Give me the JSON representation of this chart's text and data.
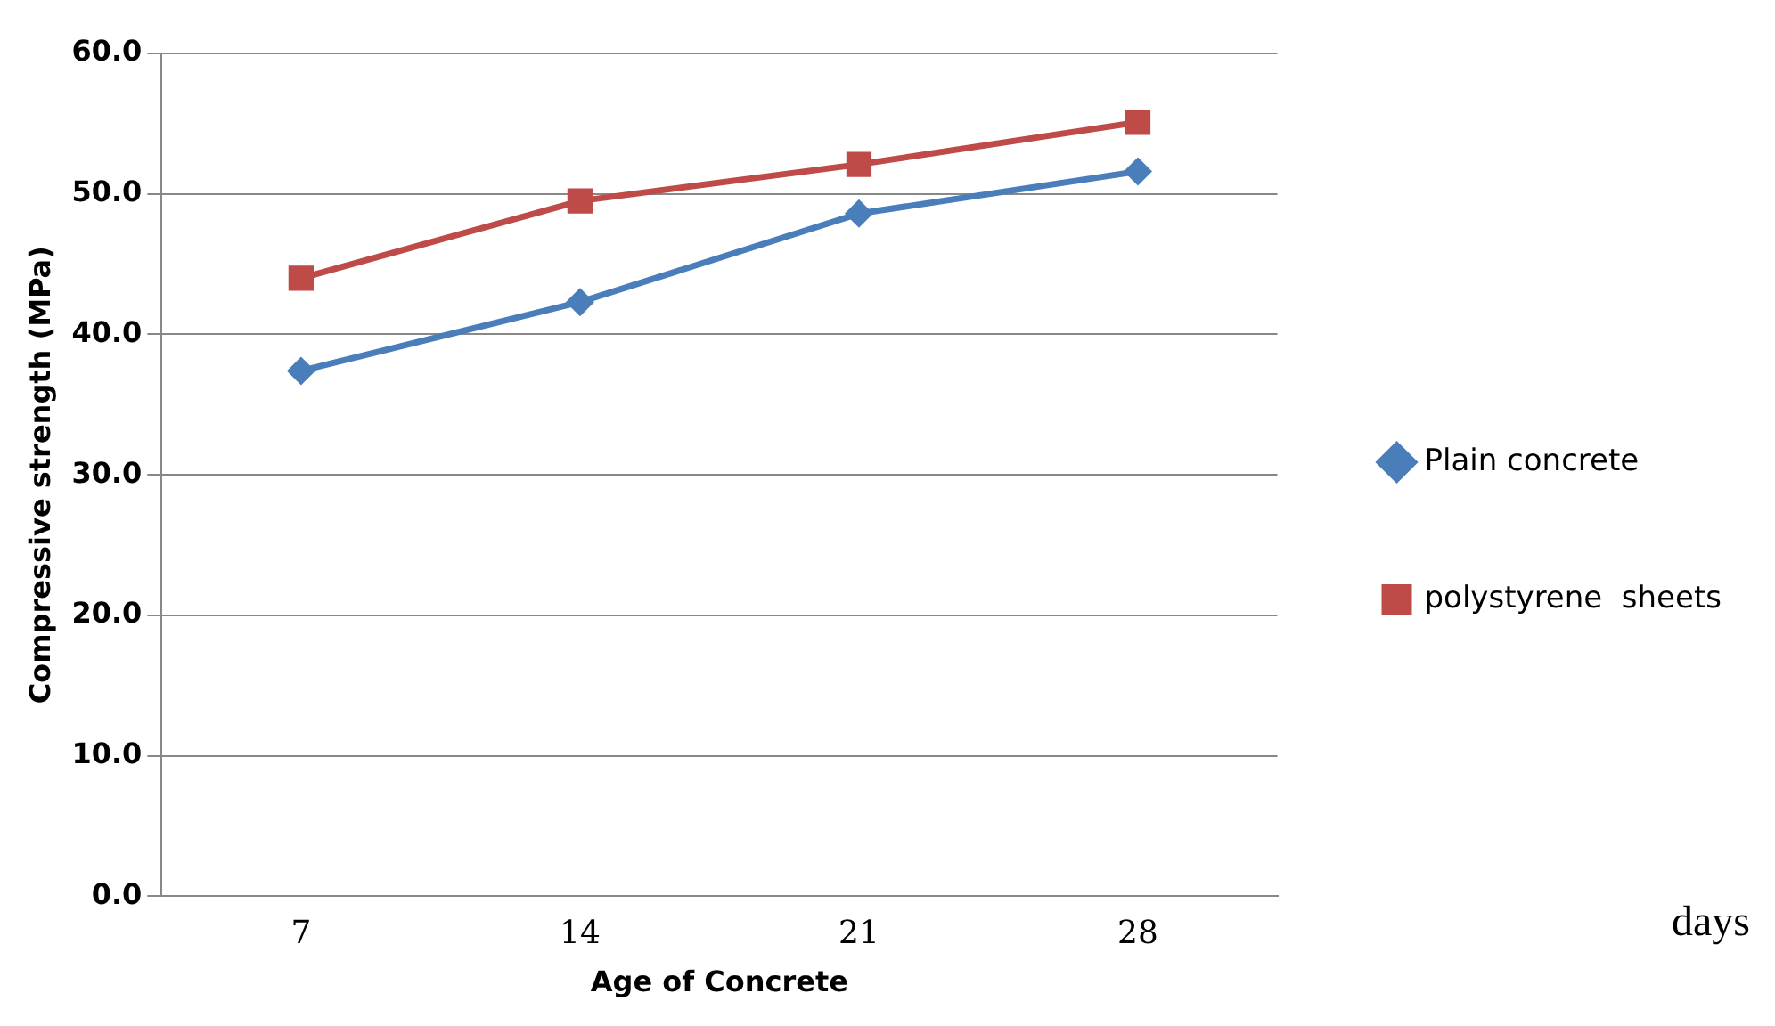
{
  "chart_data": {
    "type": "line",
    "xlabel": "Age of Concrete",
    "ylabel": "Compressive strength (MPa)",
    "categories": [
      "7",
      "14",
      "21",
      "28"
    ],
    "series": [
      {
        "name": "Plain concrete",
        "color": "#4a7ebb",
        "marker": "diamond",
        "values": [
          37.4,
          42.3,
          48.6,
          51.6
        ]
      },
      {
        "name": "polystyrene  sheets",
        "color": "#be4b48",
        "marker": "square",
        "values": [
          44.0,
          49.5,
          52.1,
          55.1
        ]
      }
    ],
    "ylim": [
      0,
      60
    ],
    "yticks": [
      {
        "value": 0,
        "label": "0.0"
      },
      {
        "value": 10,
        "label": "10.0"
      },
      {
        "value": 20,
        "label": "20.0"
      },
      {
        "value": 30,
        "label": "30.0"
      },
      {
        "value": 40,
        "label": "40.0"
      },
      {
        "value": 50,
        "label": "50.0"
      },
      {
        "value": 60,
        "label": "60.0"
      }
    ],
    "grid": "y",
    "legend": "right",
    "line_style": "solid",
    "annotations": [
      "days"
    ]
  }
}
